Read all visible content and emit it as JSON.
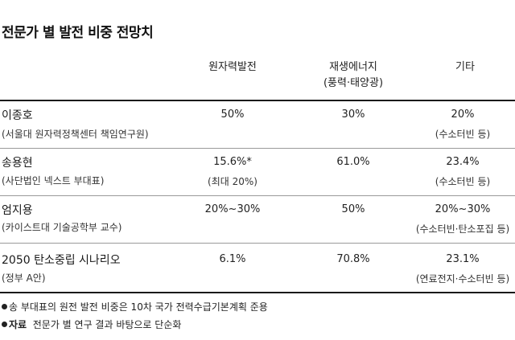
{
  "title": "전문가 별 발전 비중 전망치",
  "chart_data": {
    "type": "table",
    "columns": [
      "원자력발전",
      "재생에너지",
      "기타"
    ],
    "column_sub": [
      "",
      "(풍력·태양광)",
      ""
    ],
    "rows": [
      {
        "name": "이종호",
        "affiliation": "(서울대 원자력정책센터 책임연구원)",
        "nuclear": "50%",
        "nuclear_sub": "",
        "renewable": "30%",
        "other": "20%",
        "other_sub": "(수소터빈 등)"
      },
      {
        "name": "송용현",
        "affiliation": "(사단법인 넥스트 부대표)",
        "nuclear": "15.6%*",
        "nuclear_sub": "(최대 20%)",
        "renewable": "61.0%",
        "other": "23.4%",
        "other_sub": "(수소터빈 등)"
      },
      {
        "name": "엄지용",
        "affiliation": "(카이스트대 기술공학부 교수)",
        "nuclear": "20%~30%",
        "nuclear_sub": "",
        "renewable": "50%",
        "other": "20%~30%",
        "other_sub": "(수소터빈·탄소포집 등)"
      },
      {
        "name": "2050 탄소중립 시나리오",
        "affiliation": "(정부 A안)",
        "nuclear": "6.1%",
        "nuclear_sub": "",
        "renewable": "70.8%",
        "other": "23.1%",
        "other_sub": "(연료전지·수소터빈 등)"
      }
    ]
  },
  "notes": {
    "note1": "송 부대표의 원전 발전 비중은 10차 국가 전력수급기본계획 준용",
    "source_label": "자료",
    "source_text": "전문가 별 연구 결과 바탕으로 단순화"
  }
}
